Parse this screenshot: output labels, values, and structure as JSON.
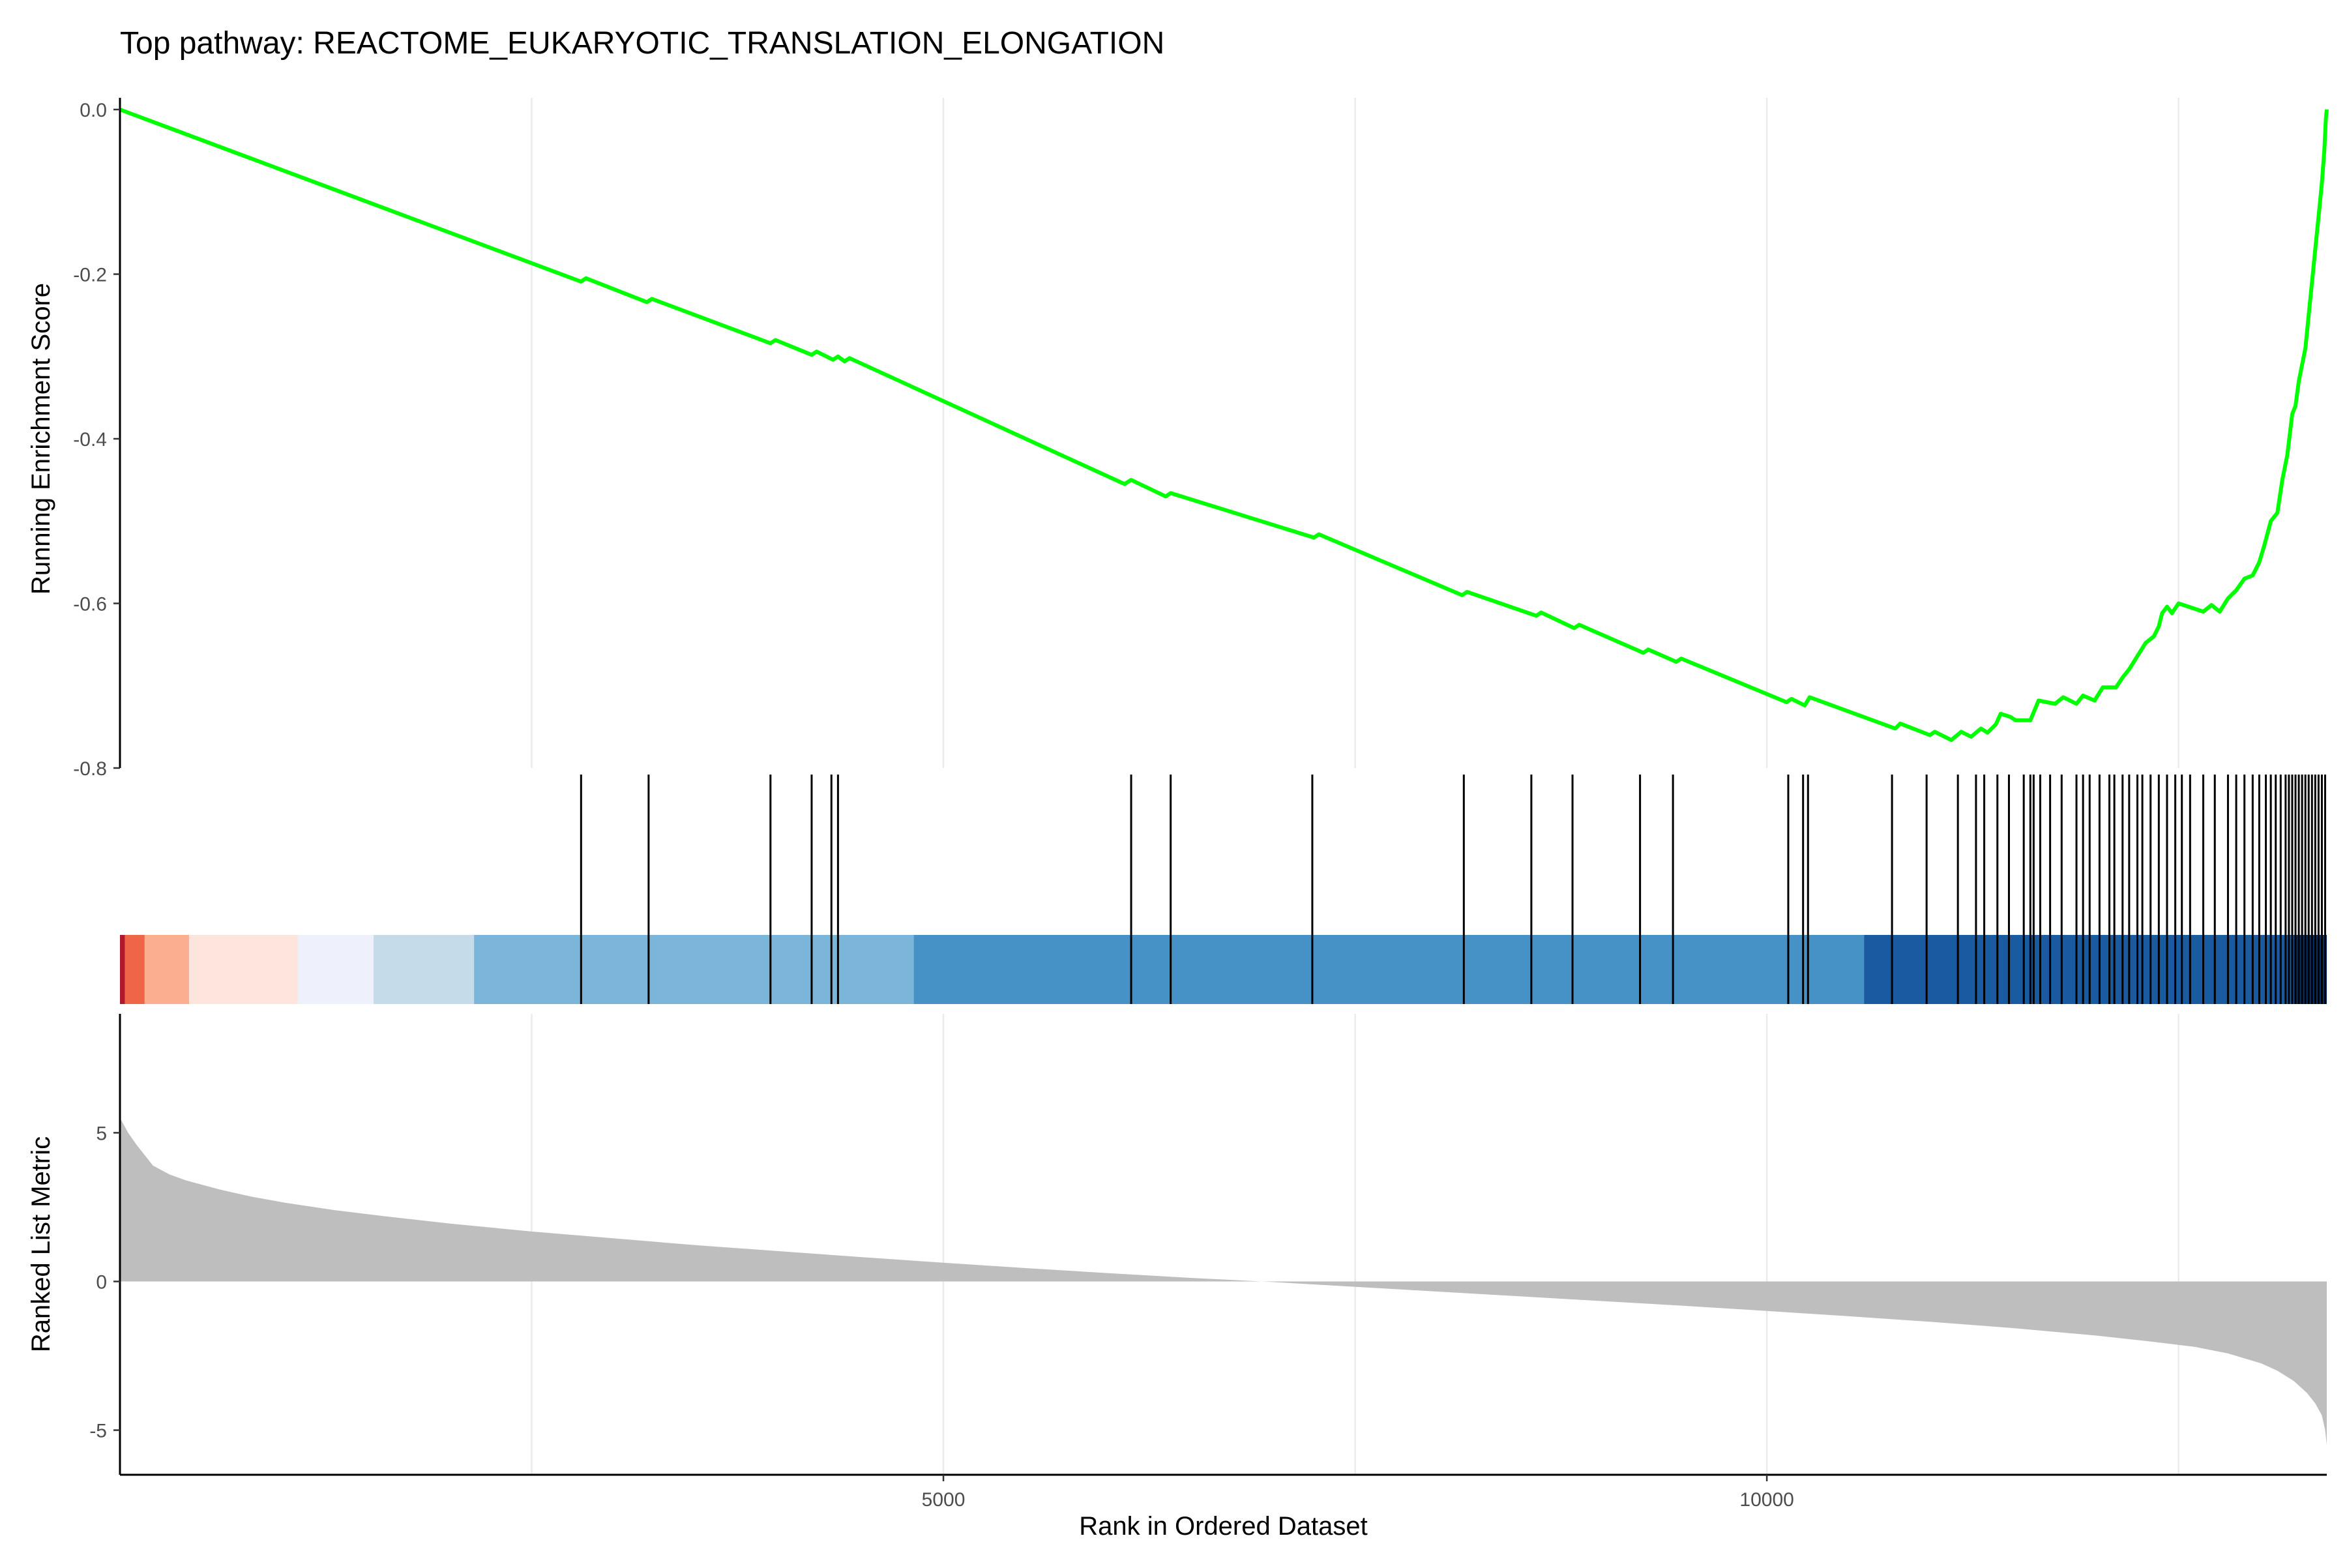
{
  "title": "Top pathway: REACTOME_EUKARYOTIC_TRANSLATION_ELONGATION",
  "chart_data": {
    "type": "line",
    "title": "Top pathway: REACTOME_EUKARYOTIC_TRANSLATION_ELONGATION",
    "xlabel": "Rank in Ordered Dataset",
    "xlim": [
      0,
      13400
    ],
    "x_ticks": [
      5000,
      10000
    ],
    "x_tick_labels": [
      "5000",
      "10000"
    ],
    "grid": "vertical major and minor (x = 2500, 5000, 7500, 10000, 12500)",
    "panels": [
      {
        "name": "running_score",
        "ylabel": "Running Enrichment Score",
        "ylim": [
          -0.8,
          0.0
        ],
        "y_ticks": [
          0.0,
          -0.2,
          -0.4,
          -0.6,
          -0.8
        ],
        "y_tick_labels": [
          "0.0",
          "-0.2",
          "-0.4",
          "-0.6",
          "-0.8"
        ],
        "line_color": "#00ff00",
        "series": [
          {
            "x": [
              0,
              2800,
              2830,
              3200,
              3230,
              3950,
              3980,
              4200,
              4230,
              4330,
              4360,
              4400,
              4430,
              6100,
              6140,
              6350,
              6380,
              7250,
              7280,
              8150,
              8180,
              8600,
              8630,
              8830,
              8860,
              9250,
              9280,
              9450,
              9480,
              10120,
              10150,
              10230,
              10260,
              10780,
              10810,
              10990,
              11020,
              11120,
              11180,
              11240,
              11300,
              11340,
              11390,
              11420,
              11480,
              11510,
              11600,
              11650,
              11750,
              11800,
              11880,
              11920,
              11990,
              12040,
              12120,
              12160,
              12200,
              12250,
              12300,
              12350,
              12380,
              12400,
              12430,
              12460,
              12500,
              12560,
              12650,
              12700,
              12750,
              12800,
              12850,
              12900,
              12950,
              12990,
              13020,
              13060,
              13100,
              13130,
              13160,
              13190,
              13210,
              13230,
              13250,
              13270,
              13290,
              13310,
              13330,
              13350,
              13370,
              13385,
              13395,
              13400
            ],
            "y": [
              0.0,
              -0.209,
              -0.205,
              -0.234,
              -0.23,
              -0.284,
              -0.28,
              -0.298,
              -0.294,
              -0.304,
              -0.3,
              -0.306,
              -0.302,
              -0.455,
              -0.45,
              -0.47,
              -0.466,
              -0.52,
              -0.516,
              -0.59,
              -0.586,
              -0.615,
              -0.611,
              -0.63,
              -0.626,
              -0.66,
              -0.656,
              -0.671,
              -0.667,
              -0.72,
              -0.716,
              -0.724,
              -0.714,
              -0.752,
              -0.746,
              -0.76,
              -0.756,
              -0.766,
              -0.756,
              -0.762,
              -0.752,
              -0.757,
              -0.747,
              -0.734,
              -0.738,
              -0.742,
              -0.742,
              -0.718,
              -0.722,
              -0.714,
              -0.722,
              -0.712,
              -0.718,
              -0.702,
              -0.702,
              -0.69,
              -0.68,
              -0.664,
              -0.648,
              -0.64,
              -0.628,
              -0.612,
              -0.604,
              -0.612,
              -0.6,
              -0.604,
              -0.61,
              -0.602,
              -0.61,
              -0.594,
              -0.584,
              -0.57,
              -0.566,
              -0.55,
              -0.53,
              -0.5,
              -0.49,
              -0.45,
              -0.42,
              -0.37,
              -0.36,
              -0.33,
              -0.31,
              -0.29,
              -0.25,
              -0.21,
              -0.17,
              -0.13,
              -0.09,
              -0.05,
              -0.01,
              0.0
            ]
          }
        ]
      },
      {
        "name": "gene_hits",
        "hit_positions": [
          2800,
          3210,
          3950,
          4200,
          4320,
          4360,
          6140,
          6380,
          7240,
          8160,
          8570,
          8820,
          9230,
          9430,
          10130,
          10220,
          10250,
          10760,
          10970,
          11160,
          11270,
          11320,
          11400,
          11470,
          11560,
          11600,
          11620,
          11660,
          11720,
          11790,
          11880,
          11920,
          11960,
          12020,
          12080,
          12110,
          12160,
          12200,
          12250,
          12280,
          12330,
          12380,
          12430,
          12480,
          12520,
          12570,
          12650,
          12720,
          12800,
          12850,
          12900,
          12950,
          12990,
          13030,
          13060,
          13090,
          13120,
          13150,
          13170,
          13190,
          13210,
          13230,
          13250,
          13270,
          13290,
          13310,
          13330,
          13350,
          13370,
          13390
        ],
        "color_bands": [
          {
            "x0": 0,
            "x1": 30,
            "color": "#b2182b"
          },
          {
            "x0": 30,
            "x1": 150,
            "color": "#ef6548"
          },
          {
            "x0": 150,
            "x1": 420,
            "color": "#fcae91"
          },
          {
            "x0": 420,
            "x1": 1080,
            "color": "#fde5de"
          },
          {
            "x0": 1080,
            "x1": 1540,
            "color": "#eef1fb"
          },
          {
            "x0": 1540,
            "x1": 2150,
            "color": "#c6dbea"
          },
          {
            "x0": 2150,
            "x1": 4820,
            "color": "#7bb5d9"
          },
          {
            "x0": 4820,
            "x1": 10590,
            "color": "#4692c6"
          },
          {
            "x0": 10590,
            "x1": 13200,
            "color": "#1a5aa0"
          },
          {
            "x0": 13200,
            "x1": 13400,
            "color": "#08306b"
          }
        ]
      },
      {
        "name": "ranked_metric",
        "ylabel": "Ranked List Metric",
        "ylim": [
          -6.5,
          9.0
        ],
        "y_ticks": [
          5,
          0,
          -5
        ],
        "y_tick_labels": [
          "5",
          "0",
          "-5"
        ],
        "fill_color": "#bebebe",
        "series": [
          {
            "x": [
              0,
              50,
              100,
              200,
              300,
              400,
              600,
              800,
              1000,
              1300,
              1600,
              2000,
              2500,
              3000,
              3500,
              4000,
              4500,
              5000,
              5500,
              6000,
              6500,
              7000,
              7500,
              8000,
              8500,
              9000,
              9500,
              10000,
              10500,
              11000,
              11500,
              12000,
              12300,
              12600,
              12800,
              13000,
              13100,
              13200,
              13280,
              13330,
              13370,
              13390,
              13400
            ],
            "y": [
              5.5,
              5.0,
              4.6,
              3.9,
              3.6,
              3.4,
              3.1,
              2.85,
              2.65,
              2.4,
              2.2,
              1.95,
              1.68,
              1.45,
              1.22,
              1.02,
              0.82,
              0.63,
              0.45,
              0.28,
              0.12,
              -0.02,
              -0.18,
              -0.34,
              -0.5,
              -0.66,
              -0.82,
              -0.99,
              -1.17,
              -1.36,
              -1.57,
              -1.82,
              -2.0,
              -2.2,
              -2.42,
              -2.75,
              -3.0,
              -3.35,
              -3.75,
              -4.1,
              -4.5,
              -5.0,
              -5.5
            ]
          }
        ]
      }
    ]
  }
}
